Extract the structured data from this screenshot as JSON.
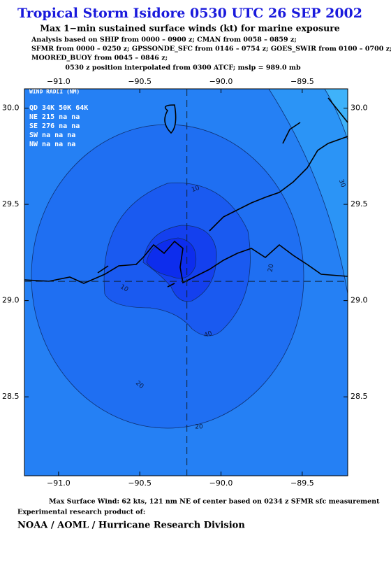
{
  "header": {
    "title": "Tropical Storm Isidore 0530 UTC 26 SEP 2002",
    "subtitle": "Max 1−min sustained surface winds (kt) for marine exposure",
    "analysis_lines": [
      "Analysis based on  SHIP from 0000 – 0900 z;  CMAN from 0058 – 0859 z;",
      "SFMR from 0000 – 0250 z;  GPSSONDE_SFC from 0146 – 0754 z;  GOES_SWIR from 0100 – 0700 z;",
      "MOORED_BUOY from 0045 – 0846 z;"
    ],
    "position_note": "0530 z position interpolated from 0300 ATCF; mslp = 989.0 mb"
  },
  "map": {
    "lon_range": [
      -91.21,
      -89.22
    ],
    "lat_range": [
      28.09,
      30.1
    ],
    "lon_ticks": [
      {
        "value": -91.0,
        "label": "−91.0"
      },
      {
        "value": -90.5,
        "label": "−90.5"
      },
      {
        "value": -90.0,
        "label": "−90.0"
      },
      {
        "value": -89.5,
        "label": "−89.5"
      }
    ],
    "lat_ticks": [
      {
        "value": 30.0,
        "label": "30.0"
      },
      {
        "value": 29.5,
        "label": "29.5"
      },
      {
        "value": 29.0,
        "label": "29.0"
      },
      {
        "value": 28.5,
        "label": "28.5"
      }
    ],
    "center": [
      -90.21,
      29.1
    ],
    "wind_radii": [
      "WIND RADII (NM)",
      "QD 34K 50K 64K",
      "NE 215  na  na",
      "SE 276  na  na",
      "SW  na  na  na",
      "NW  na  na  na"
    ],
    "contour_labels": [
      "10",
      "10",
      "20",
      "20",
      "20",
      "30",
      "40"
    ]
  },
  "footer": {
    "max_wind": "Max Surface Wind: 62 kts, 121 nm NE of center based on 0234 z SFMR sfc measurement",
    "product": "Experimental research product of:",
    "org": "NOAA / AOML / Hurricane Research Division"
  }
}
